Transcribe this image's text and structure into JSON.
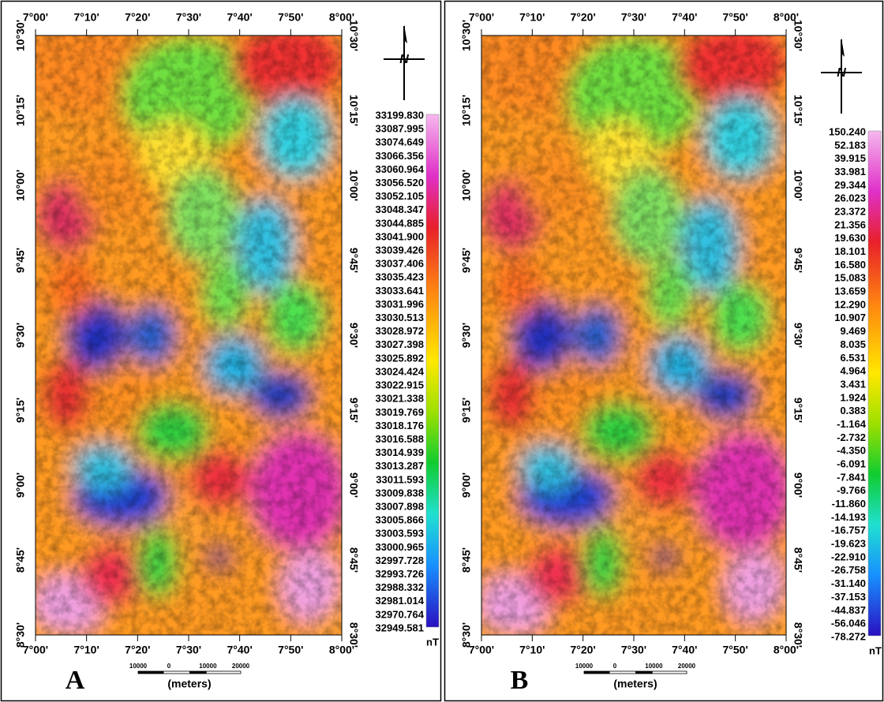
{
  "panels": [
    {
      "label": "A",
      "lon_labels": [
        "7°00'",
        "7°10'",
        "7°20'",
        "7°30'",
        "7°40'",
        "7°50'",
        "8°00'"
      ],
      "lat_labels": [
        "10°30'",
        "10°15'",
        "10°00'",
        "9°45'",
        "9°30'",
        "9°15'",
        "9°00'",
        "8°45'",
        "8°30'"
      ],
      "north": "N",
      "colorbar": {
        "labels": [
          "33199.830",
          "33087.995",
          "33074.649",
          "33066.356",
          "33060.964",
          "33056.520",
          "33052.105",
          "33048.347",
          "33044.885",
          "33041.900",
          "33039.426",
          "33037.406",
          "33035.423",
          "33033.641",
          "33031.996",
          "33030.513",
          "33028.972",
          "33027.398",
          "33025.892",
          "33024.424",
          "33022.915",
          "33021.338",
          "33019.769",
          "33018.176",
          "33016.588",
          "33014.939",
          "33013.287",
          "33011.593",
          "33009.838",
          "33007.898",
          "33005.866",
          "33003.593",
          "33000.965",
          "32997.728",
          "32993.726",
          "32988.332",
          "32981.014",
          "32970.764",
          "32949.581"
        ],
        "unit": "nT"
      },
      "scale": {
        "ticks": [
          "10000",
          "0",
          "10000",
          "20000"
        ],
        "unit": "(meters)"
      }
    },
    {
      "label": "B",
      "lon_labels": [
        "7°00'",
        "7°10'",
        "7°20'",
        "7°30'",
        "7°40'",
        "7°50'",
        "8°00'"
      ],
      "lat_labels": [
        "10°30'",
        "10°15'",
        "10°00'",
        "9°45'",
        "9°30'",
        "9°15'",
        "9°00'",
        "8°45'",
        "8°30'"
      ],
      "north": "N",
      "colorbar": {
        "labels": [
          "150.240",
          "52.183",
          "39.915",
          "33.981",
          "29.344",
          "26.023",
          "23.372",
          "21.356",
          "19.630",
          "18.101",
          "16.580",
          "15.083",
          "13.659",
          "12.290",
          "10.907",
          "9.469",
          "8.035",
          "6.531",
          "4.964",
          "3.431",
          "1.924",
          "0.383",
          "-1.164",
          "-2.732",
          "-4.350",
          "-6.091",
          "-7.841",
          "-9.766",
          "-11.860",
          "-14.193",
          "-16.757",
          "-19.623",
          "-22.910",
          "-26.758",
          "-31.140",
          "-37.153",
          "-44.837",
          "-56.046",
          "-78.272"
        ],
        "unit": "nT"
      },
      "scale": {
        "ticks": [
          "10000",
          "0",
          "10000",
          "20000"
        ],
        "unit": "(meters)"
      }
    }
  ]
}
